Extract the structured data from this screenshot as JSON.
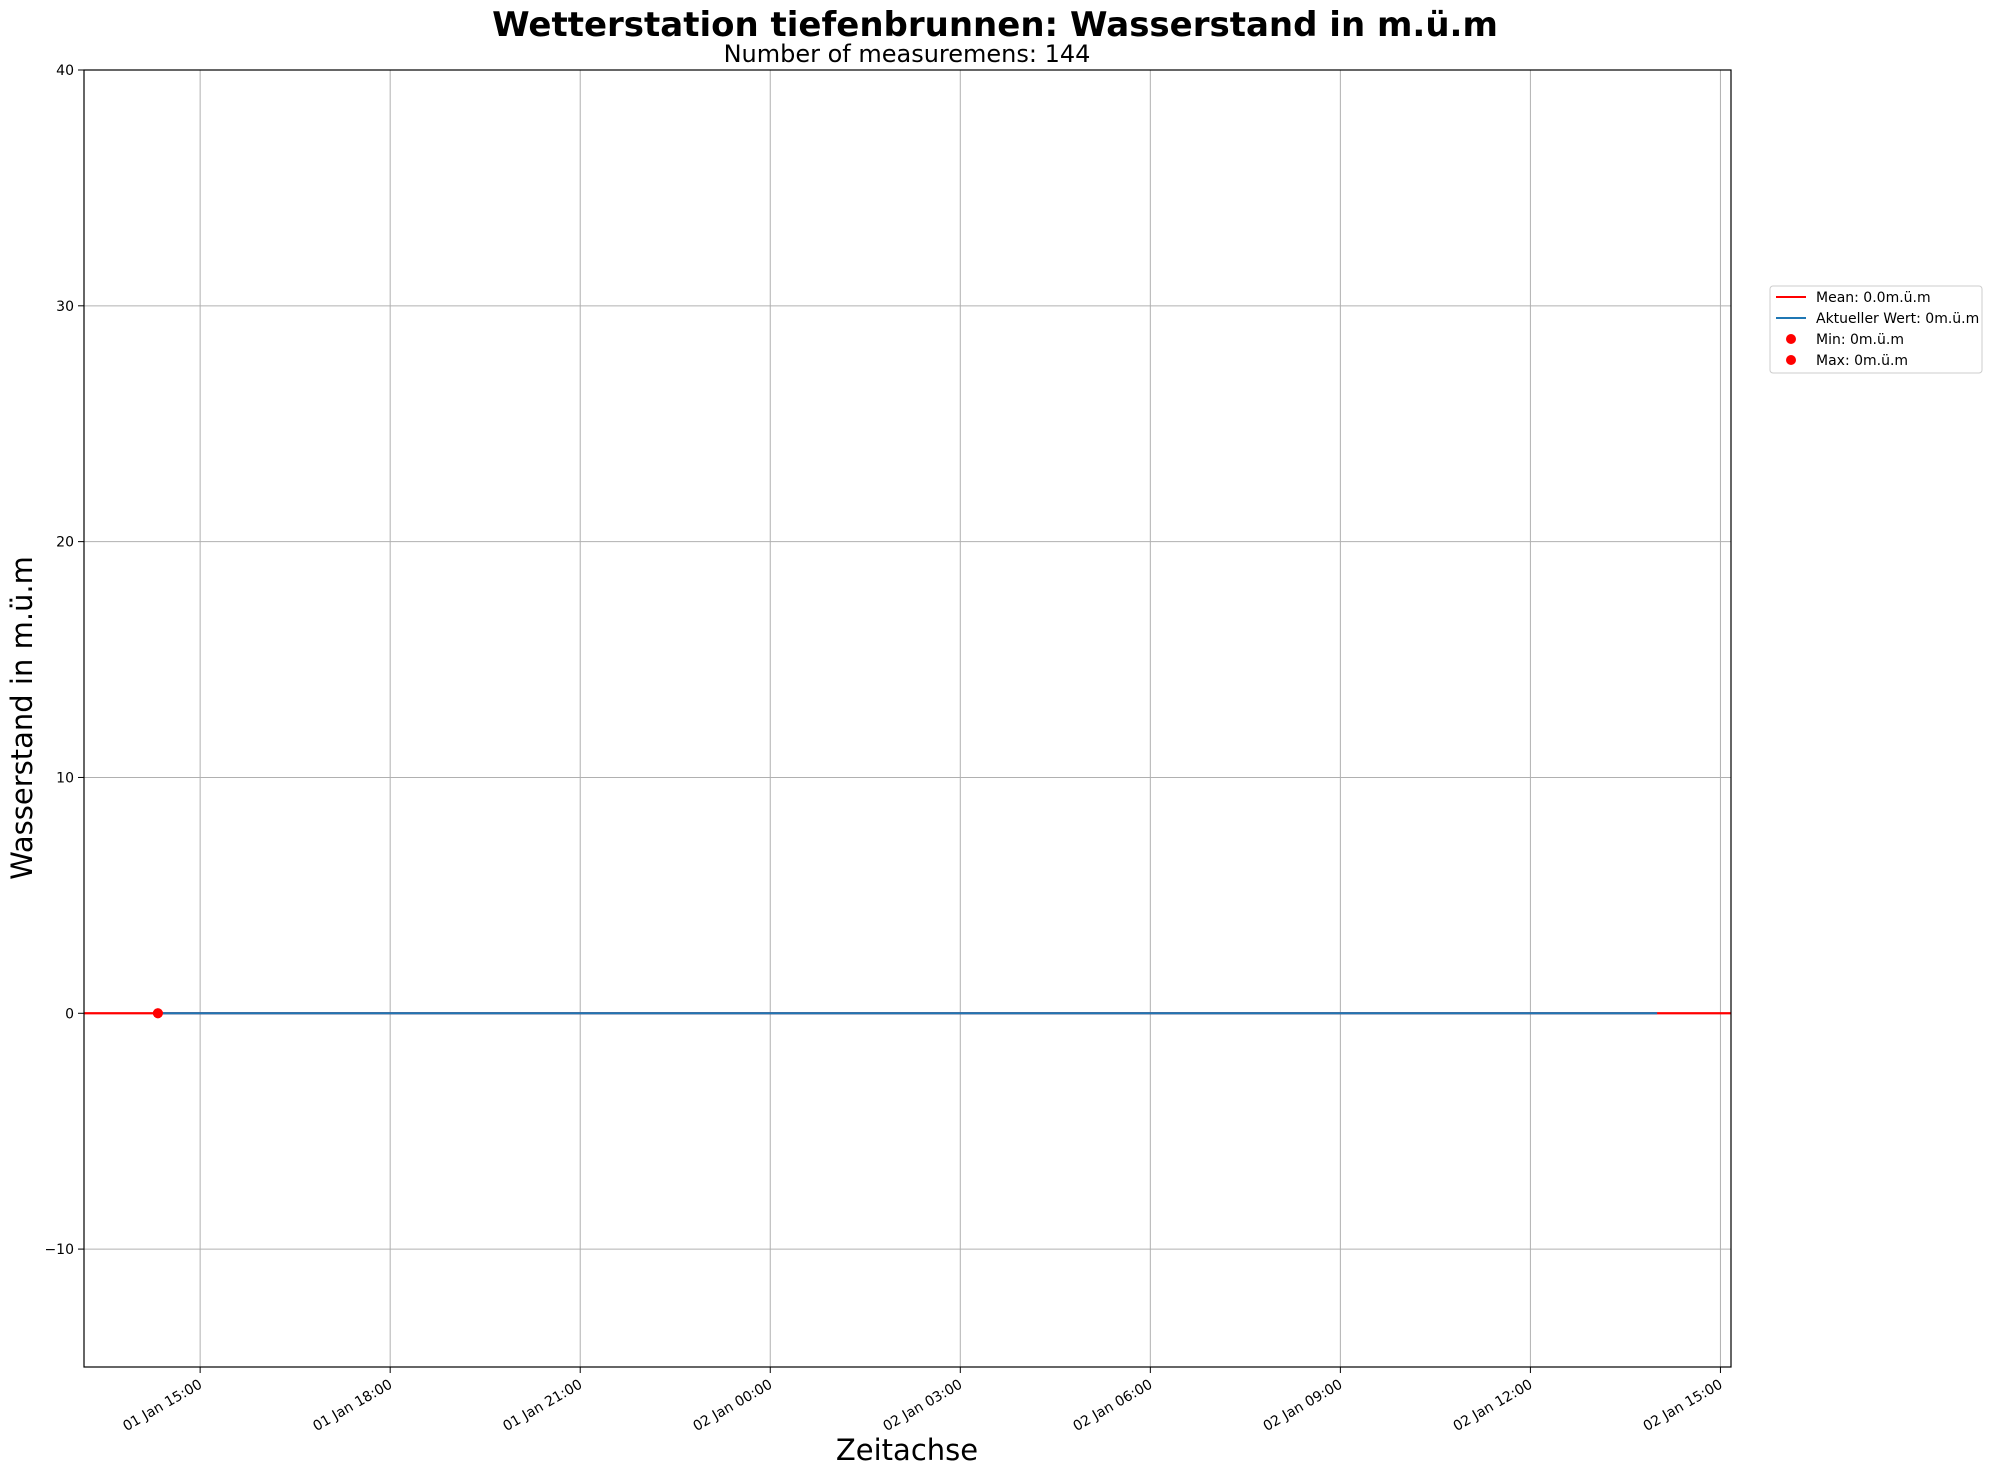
{
  "chart_data": {
    "type": "line",
    "title": "Wetterstation tiefenbrunnen: Wasserstand  in m.ü.m",
    "subtitle": "Number of measuremens: 144",
    "xlabel": "Zeitachse",
    "ylabel": "Wasserstand  in m.ü.m",
    "xlim": [
      "2023-01-01T13:10",
      "2023-01-02T15:10"
    ],
    "ylim": [
      -15,
      40
    ],
    "yticks": [
      -10,
      0,
      10,
      20,
      30,
      40
    ],
    "xticks": [
      {
        "t": "2023-01-01T15:00",
        "label": "01 Jan 15:00"
      },
      {
        "t": "2023-01-01T18:00",
        "label": "01 Jan 18:00"
      },
      {
        "t": "2023-01-01T21:00",
        "label": "01 Jan 21:00"
      },
      {
        "t": "2023-01-02T00:00",
        "label": "02 Jan 00:00"
      },
      {
        "t": "2023-01-02T03:00",
        "label": "02 Jan 03:00"
      },
      {
        "t": "2023-01-02T06:00",
        "label": "02 Jan 06:00"
      },
      {
        "t": "2023-01-02T09:00",
        "label": "02 Jan 09:00"
      },
      {
        "t": "2023-01-02T12:00",
        "label": "02 Jan 12:00"
      },
      {
        "t": "2023-01-02T15:00",
        "label": "02 Jan 15:00"
      }
    ],
    "grid": true,
    "legend_position": "outside-right",
    "series": [
      {
        "name": "Mean: 0.0m.ü.m",
        "kind": "line",
        "color": "#ff0000",
        "x": [
          "2023-01-01T13:10",
          "2023-01-02T15:10"
        ],
        "y": [
          0,
          0
        ]
      },
      {
        "name": "Aktueller Wert: 0m.ü.m",
        "kind": "line",
        "color": "#1f77b4",
        "x": [
          "2023-01-01T14:20",
          "2023-01-02T14:00"
        ],
        "y": [
          0,
          0
        ]
      },
      {
        "name": "Min: 0m.ü.m",
        "kind": "point",
        "color": "#ff0000",
        "x": [
          "2023-01-01T14:20"
        ],
        "y": [
          0
        ]
      },
      {
        "name": "Max: 0m.ü.m",
        "kind": "point",
        "color": "#ff0000",
        "x": [
          "2023-01-01T14:20"
        ],
        "y": [
          0
        ]
      }
    ]
  }
}
